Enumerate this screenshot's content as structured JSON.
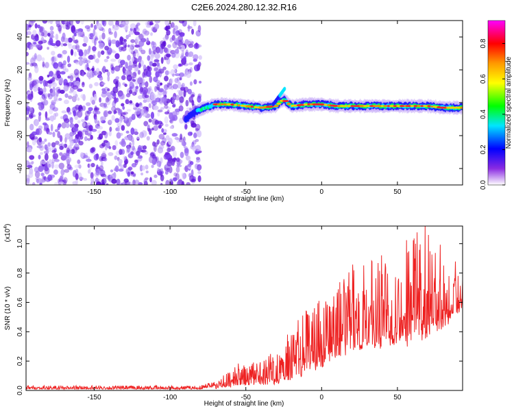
{
  "figure": {
    "title": "C2E6.2024.280.12.32.R16"
  },
  "chart_data": [
    {
      "type": "heatmap",
      "xlabel": "Height of straight line (km)",
      "ylabel": "Frequency (Hz)",
      "xlim": [
        -195,
        93
      ],
      "ylim": [
        -50,
        50
      ],
      "xticks": [
        "-150",
        "-100",
        "-50",
        "0",
        "50"
      ],
      "xtick_values": [
        -150,
        -100,
        -50,
        0,
        50
      ],
      "yticks": [
        "40",
        "20",
        "0",
        "-20",
        "-40"
      ],
      "ytick_values": [
        40,
        20,
        0,
        -20,
        -40
      ],
      "noise_region_x": [
        -195,
        -80
      ],
      "signal_ridge": {
        "x": [
          -90,
          -80,
          -70,
          -60,
          -50,
          -40,
          -30,
          -25,
          -20,
          -10,
          0,
          10,
          20,
          30,
          40,
          50,
          60,
          70,
          80,
          93
        ],
        "frequency": [
          -10,
          -4,
          -1,
          -1,
          -2,
          -3,
          -2,
          2,
          -2,
          -1,
          -1,
          -2,
          -2,
          -2,
          -2,
          -2,
          -2,
          -2,
          -3,
          -3
        ]
      },
      "colorbar": {
        "label": "Normalized spectral amplitude",
        "range": [
          0,
          0.93
        ],
        "ticks": [
          "0.0",
          "0.2",
          "0.4",
          "0.6",
          "0.8"
        ],
        "tick_values": [
          0.0,
          0.2,
          0.4,
          0.6,
          0.8
        ],
        "colors": [
          "#ffffff",
          "#8a2be2",
          "#0000ff",
          "#00e5ff",
          "#00ff00",
          "#ffff00",
          "#ff9900",
          "#ff0000",
          "#ff00ff"
        ]
      }
    },
    {
      "type": "line",
      "xlabel": "Height of straight line (km)",
      "ylabel": "SNR (10 * v/v)",
      "multiplier": "(x10",
      "multiplier_exp": "4",
      "multiplier_close": ")",
      "xlim": [
        -195,
        93
      ],
      "ylim": [
        0,
        1.12
      ],
      "xticks": [
        "-150",
        "-100",
        "-50",
        "0",
        "50"
      ],
      "xtick_values": [
        -150,
        -100,
        -50,
        0,
        50
      ],
      "yticks": [
        "0.0",
        "0.2",
        "0.4",
        "0.6",
        "0.8",
        "1.0"
      ],
      "ytick_values": [
        0.0,
        0.2,
        0.4,
        0.6,
        0.8,
        1.0
      ],
      "series": [
        {
          "color": "#ee2222",
          "envelope": {
            "x": [
              -195,
              -80,
              -70,
              -60,
              -55,
              -50,
              -40,
              -30,
              -25,
              -20,
              -15,
              -10,
              -5,
              0,
              5,
              10,
              15,
              20,
              30,
              40,
              50,
              60,
              65,
              70,
              80,
              93
            ],
            "upper": [
              0.03,
              0.03,
              0.07,
              0.13,
              0.18,
              0.16,
              0.2,
              0.28,
              0.35,
              0.4,
              0.45,
              0.55,
              0.6,
              0.62,
              0.65,
              0.7,
              0.75,
              0.8,
              0.85,
              0.9,
              0.95,
              1.05,
              1.1,
              1.05,
              0.95,
              0.8
            ],
            "lower": [
              0.0,
              0.0,
              0.01,
              0.02,
              0.03,
              0.03,
              0.03,
              0.03,
              0.05,
              0.05,
              0.08,
              0.1,
              0.12,
              0.15,
              0.18,
              0.2,
              0.22,
              0.25,
              0.25,
              0.28,
              0.28,
              0.3,
              0.32,
              0.35,
              0.4,
              0.55
            ]
          }
        }
      ]
    }
  ]
}
